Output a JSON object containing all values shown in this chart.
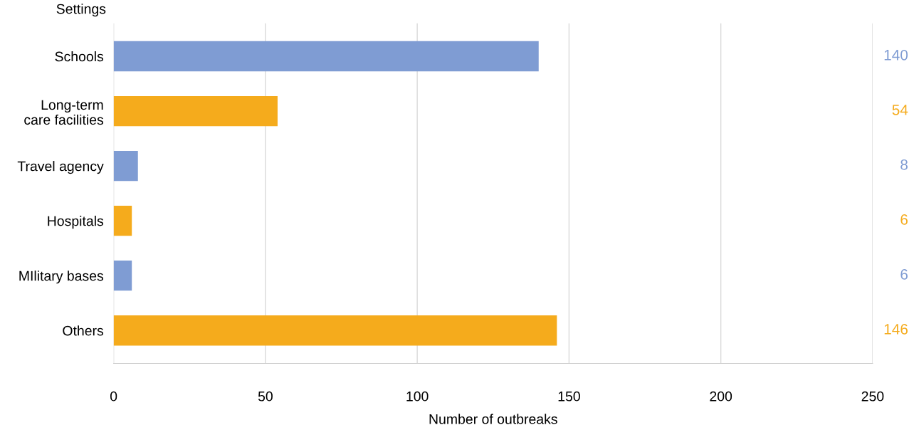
{
  "chart_data": {
    "type": "bar",
    "orientation": "horizontal",
    "ylabel": "Settings",
    "xlabel": "Number of outbreaks",
    "categories": [
      "Schools",
      "Long-term\ncare facilities",
      "Travel agency",
      "Hospitals",
      "MIlitary bases",
      "Others"
    ],
    "values": [
      140,
      54,
      8,
      6,
      6,
      146
    ],
    "colors": [
      "#7f9cd3",
      "#f5ab1c",
      "#7f9cd3",
      "#f5ab1c",
      "#7f9cd3",
      "#f5ab1c"
    ],
    "xlim": [
      0,
      250
    ],
    "xticks": [
      0,
      50,
      100,
      150,
      200,
      250
    ],
    "grid": "x",
    "data_labels": true
  }
}
